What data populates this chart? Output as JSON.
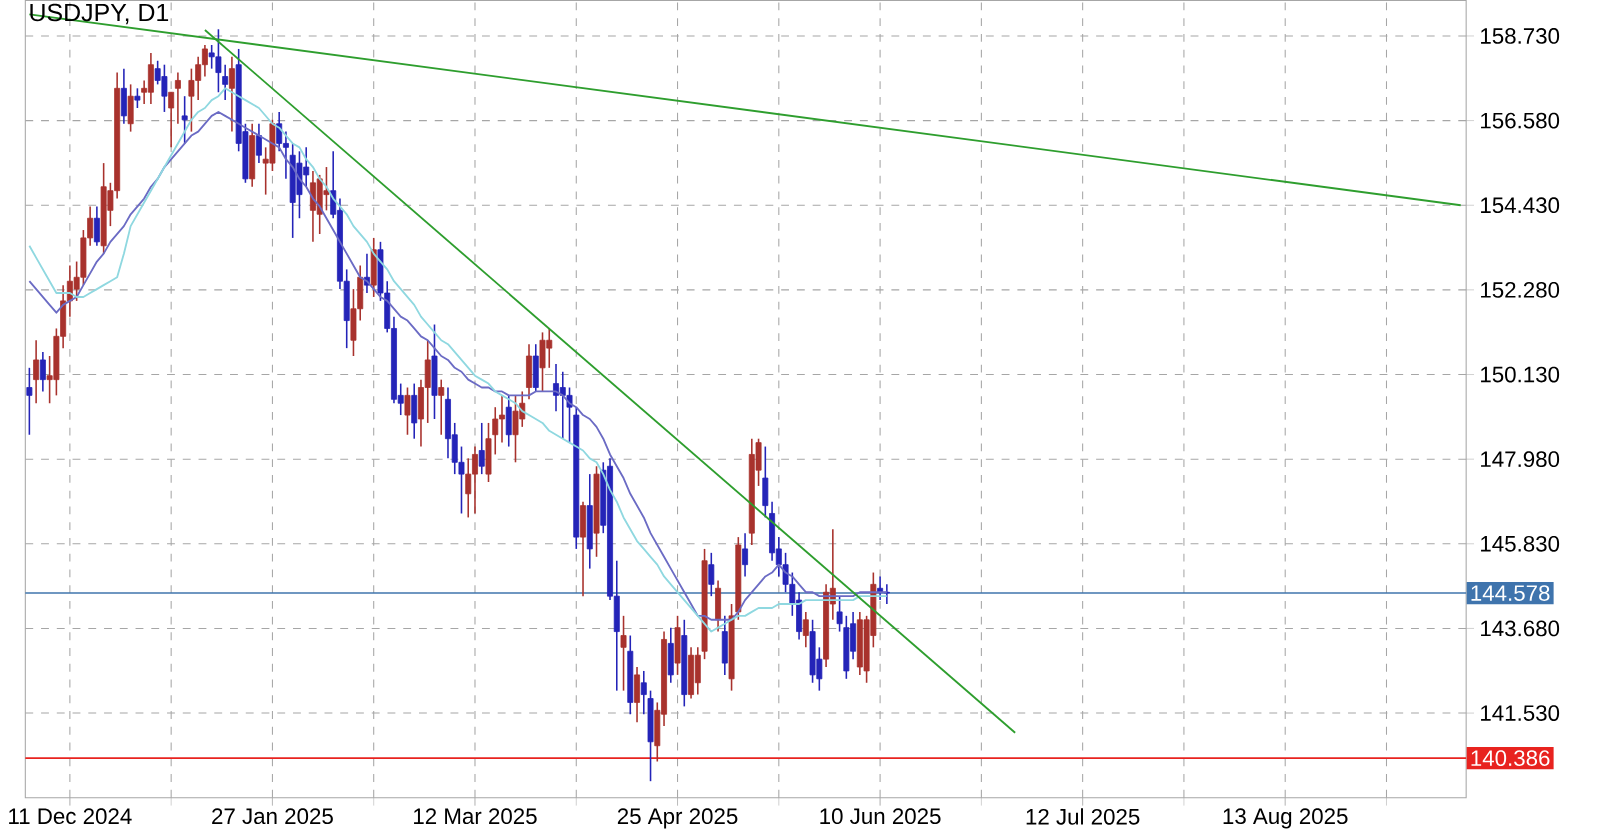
{
  "chart_data": {
    "type": "candlestick",
    "title": "USDJPY, D1",
    "ylim": [
      139.38,
      159.63
    ],
    "categories": [
      null,
      null,
      null,
      null,
      null,
      null,
      "11 Dec 2024",
      null,
      null,
      null,
      null,
      null,
      null,
      null,
      null,
      null,
      null,
      null,
      null,
      null,
      null,
      null,
      null,
      null,
      null,
      null,
      null,
      null,
      null,
      null,
      null,
      null,
      null,
      null,
      null,
      null,
      "27 Jan 2025",
      null,
      null,
      null,
      null,
      null,
      null,
      null,
      null,
      null,
      null,
      null,
      null,
      null,
      null,
      null,
      null,
      null,
      null,
      null,
      null,
      null,
      null,
      null,
      null,
      null,
      null,
      null,
      null,
      null,
      "12 Mar 2025",
      null,
      null,
      null,
      null,
      null,
      null,
      null,
      null,
      null,
      null,
      null,
      null,
      null,
      null,
      null,
      null,
      null,
      null,
      null,
      null,
      null,
      null,
      null,
      null,
      null,
      null,
      null,
      null,
      null,
      "25 Apr 2025",
      null,
      null,
      null,
      null,
      null,
      null,
      null,
      null,
      null,
      null,
      null,
      null,
      null,
      null,
      null,
      null,
      null,
      null,
      null,
      null,
      null,
      null,
      null,
      null,
      null,
      null,
      null,
      null,
      null,
      "10 Jun 2025",
      null,
      null,
      null,
      null,
      null,
      null,
      null,
      null,
      null,
      null,
      null,
      null,
      null,
      null,
      null,
      null,
      null,
      null,
      null,
      null,
      null,
      null,
      null,
      null,
      null,
      null,
      null,
      null,
      null,
      "12 Jul 2025",
      null,
      null,
      null,
      null,
      null,
      null,
      null,
      null,
      null,
      null,
      null,
      null,
      null,
      null,
      null,
      null,
      null,
      null,
      null,
      null,
      null,
      null,
      null,
      null,
      null,
      null,
      null,
      null,
      null,
      "13 Aug 2025",
      null,
      null,
      null,
      null,
      null,
      null,
      null,
      null,
      null,
      null,
      null,
      null,
      null,
      null,
      null,
      null,
      null,
      null,
      null,
      null,
      null,
      null,
      null,
      null,
      null,
      null
    ],
    "yticks": [
      {
        "value": 141.53,
        "label": "141.530"
      },
      {
        "value": 143.68,
        "label": "143.680"
      },
      {
        "value": 145.83,
        "label": "145.830"
      },
      {
        "value": 147.98,
        "label": "147.980"
      },
      {
        "value": 150.13,
        "label": "150.130"
      },
      {
        "value": 152.28,
        "label": "152.280"
      },
      {
        "value": 154.43,
        "label": "154.430"
      },
      {
        "value": 156.58,
        "label": "156.580"
      },
      {
        "value": 158.73,
        "label": "158.730"
      }
    ],
    "grid": true,
    "ref_lines": [
      {
        "axis": "y",
        "value": 144.578,
        "label": "144.578",
        "color": "#3f74ad"
      },
      {
        "axis": "y",
        "value": 140.386,
        "label": "140.386",
        "color": "#e8231f"
      }
    ],
    "series": [
      {
        "ohlc": [
          [
            149.8,
            150.3,
            148.6,
            149.6
          ],
          [
            150.0,
            151.0,
            149.4,
            150.5
          ],
          [
            150.5,
            150.7,
            149.7,
            150.0
          ],
          [
            150.0,
            150.6,
            149.4,
            150.1
          ],
          [
            150.0,
            151.3,
            149.6,
            151.1
          ],
          [
            151.1,
            152.4,
            150.8,
            152.0
          ],
          [
            152.0,
            152.9,
            151.6,
            152.5
          ],
          [
            152.3,
            153.0,
            152.0,
            152.6
          ],
          [
            152.6,
            153.8,
            152.4,
            153.6
          ],
          [
            153.6,
            154.4,
            153.4,
            154.1
          ],
          [
            154.1,
            154.4,
            153.4,
            153.5
          ],
          [
            153.4,
            155.5,
            153.2,
            154.9
          ],
          [
            154.3,
            155.0,
            153.9,
            154.8
          ],
          [
            154.8,
            157.8,
            154.6,
            157.4
          ],
          [
            157.4,
            157.9,
            156.5,
            156.7
          ],
          [
            156.5,
            157.5,
            156.3,
            157.2
          ],
          [
            157.2,
            157.4,
            156.9,
            157.1
          ],
          [
            157.3,
            157.6,
            157.0,
            157.4
          ],
          [
            157.3,
            158.3,
            157.0,
            158.0
          ],
          [
            157.9,
            158.1,
            157.5,
            157.6
          ],
          [
            157.7,
            158.0,
            156.8,
            157.2
          ],
          [
            156.9,
            157.3,
            155.9,
            157.3
          ],
          [
            157.4,
            157.8,
            156.5,
            157.6
          ],
          [
            156.7,
            157.2,
            156.0,
            156.6
          ],
          [
            157.2,
            157.9,
            156.3,
            157.6
          ],
          [
            157.6,
            158.2,
            157.1,
            158.0
          ],
          [
            158.0,
            158.5,
            157.7,
            158.4
          ],
          [
            158.3,
            158.5,
            157.9,
            158.2
          ],
          [
            158.2,
            158.9,
            157.3,
            157.8
          ],
          [
            157.7,
            158.0,
            157.1,
            157.5
          ],
          [
            157.4,
            158.2,
            156.3,
            157.9
          ],
          [
            158.0,
            158.4,
            155.8,
            156.0
          ],
          [
            156.3,
            156.5,
            155.0,
            155.1
          ],
          [
            155.1,
            156.5,
            154.9,
            156.2
          ],
          [
            156.2,
            156.5,
            155.5,
            155.7
          ],
          [
            155.5,
            155.9,
            154.7,
            155.6
          ],
          [
            155.5,
            156.6,
            155.3,
            156.5
          ],
          [
            156.5,
            156.8,
            155.8,
            156.0
          ],
          [
            156.0,
            156.3,
            155.1,
            155.9
          ],
          [
            155.7,
            156.0,
            153.6,
            154.5
          ],
          [
            155.5,
            155.8,
            154.1,
            154.7
          ],
          [
            155.4,
            155.9,
            154.9,
            155.2
          ],
          [
            154.3,
            155.3,
            153.5,
            155.0
          ],
          [
            154.2,
            155.2,
            153.7,
            155.1
          ],
          [
            154.7,
            155.4,
            154.3,
            154.8
          ],
          [
            154.8,
            155.8,
            154.1,
            154.2
          ],
          [
            154.3,
            154.6,
            152.3,
            152.5
          ],
          [
            152.5,
            152.8,
            150.8,
            151.5
          ],
          [
            151.0,
            152.3,
            150.6,
            151.8
          ],
          [
            151.8,
            152.9,
            151.5,
            152.6
          ],
          [
            152.6,
            153.2,
            152.2,
            152.4
          ],
          [
            152.4,
            153.6,
            152.1,
            153.3
          ],
          [
            153.3,
            153.5,
            152.0,
            152.2
          ],
          [
            152.2,
            152.5,
            151.2,
            151.3
          ],
          [
            151.3,
            151.6,
            149.4,
            149.5
          ],
          [
            149.6,
            149.9,
            149.1,
            149.4
          ],
          [
            149.1,
            149.8,
            148.6,
            149.6
          ],
          [
            149.6,
            149.9,
            148.5,
            148.9
          ],
          [
            149.0,
            150.0,
            148.3,
            149.8
          ],
          [
            149.8,
            151.0,
            148.9,
            150.5
          ],
          [
            150.6,
            151.4,
            149.0,
            149.6
          ],
          [
            149.6,
            150.0,
            148.6,
            149.8
          ],
          [
            149.5,
            149.8,
            148.0,
            148.5
          ],
          [
            148.6,
            148.9,
            147.6,
            147.9
          ],
          [
            147.9,
            148.3,
            146.6,
            147.6
          ],
          [
            147.1,
            148.0,
            146.5,
            147.6
          ],
          [
            147.6,
            148.3,
            146.6,
            148.1
          ],
          [
            148.2,
            148.9,
            147.6,
            147.8
          ],
          [
            147.6,
            148.9,
            147.4,
            148.5
          ],
          [
            148.6,
            149.3,
            148.1,
            149.0
          ],
          [
            149.0,
            149.6,
            148.4,
            149.1
          ],
          [
            149.3,
            149.6,
            148.3,
            148.6
          ],
          [
            148.6,
            149.6,
            147.9,
            149.2
          ],
          [
            149.0,
            149.7,
            148.8,
            149.4
          ],
          [
            149.8,
            150.9,
            149.5,
            150.6
          ],
          [
            150.6,
            150.9,
            149.7,
            149.8
          ],
          [
            150.3,
            151.2,
            149.7,
            151.0
          ],
          [
            150.8,
            151.3,
            150.3,
            151.0
          ],
          [
            149.9,
            150.4,
            149.2,
            149.6
          ],
          [
            149.8,
            150.2,
            148.5,
            149.6
          ],
          [
            149.6,
            149.8,
            148.4,
            149.3
          ],
          [
            149.1,
            149.3,
            145.7,
            146.0
          ],
          [
            146.0,
            146.9,
            144.5,
            146.8
          ],
          [
            146.8,
            147.6,
            145.2,
            145.7
          ],
          [
            146.1,
            147.8,
            145.5,
            147.6
          ],
          [
            147.7,
            147.9,
            146.1,
            146.3
          ],
          [
            147.8,
            148.0,
            144.4,
            144.5
          ],
          [
            144.5,
            145.4,
            142.1,
            143.6
          ],
          [
            143.2,
            144.0,
            142.1,
            143.5
          ],
          [
            143.1,
            143.5,
            141.5,
            141.8
          ],
          [
            141.8,
            142.7,
            141.3,
            142.5
          ],
          [
            142.3,
            142.6,
            141.5,
            142.0
          ],
          [
            141.9,
            142.1,
            139.8,
            140.8
          ],
          [
            140.7,
            141.8,
            140.3,
            141.6
          ],
          [
            141.5,
            143.6,
            141.2,
            143.4
          ],
          [
            143.3,
            143.7,
            142.3,
            142.5
          ],
          [
            142.8,
            144.0,
            142.5,
            143.7
          ],
          [
            143.5,
            143.9,
            141.7,
            142.0
          ],
          [
            142.0,
            143.2,
            141.9,
            143.0
          ],
          [
            142.3,
            143.2,
            142.0,
            143.0
          ],
          [
            143.1,
            145.7,
            142.9,
            145.4
          ],
          [
            145.3,
            145.6,
            144.5,
            144.8
          ],
          [
            143.9,
            144.9,
            143.6,
            144.7
          ],
          [
            143.6,
            144.0,
            142.5,
            142.8
          ],
          [
            142.4,
            144.3,
            142.1,
            144.0
          ],
          [
            144.1,
            146.0,
            143.9,
            145.8
          ],
          [
            145.7,
            146.1,
            145.0,
            145.3
          ],
          [
            146.1,
            148.5,
            145.8,
            148.1
          ],
          [
            147.7,
            148.5,
            147.3,
            148.4
          ],
          [
            147.5,
            148.3,
            146.5,
            146.8
          ],
          [
            146.6,
            146.9,
            145.4,
            145.6
          ],
          [
            145.7,
            146.0,
            145.0,
            145.3
          ],
          [
            145.3,
            145.6,
            144.6,
            144.8
          ],
          [
            144.8,
            145.1,
            144.0,
            144.3
          ],
          [
            144.4,
            144.6,
            143.4,
            143.6
          ],
          [
            143.5,
            144.1,
            143.2,
            143.9
          ],
          [
            143.6,
            143.9,
            142.3,
            142.5
          ],
          [
            142.9,
            143.2,
            142.1,
            142.4
          ],
          [
            142.9,
            144.8,
            142.7,
            144.6
          ],
          [
            144.3,
            146.2,
            143.9,
            144.7
          ],
          [
            144.1,
            144.5,
            143.6,
            143.8
          ],
          [
            143.7,
            144.0,
            142.4,
            142.6
          ],
          [
            143.8,
            144.1,
            142.9,
            143.1
          ],
          [
            142.7,
            144.1,
            142.5,
            143.9
          ],
          [
            142.6,
            144.0,
            142.3,
            143.9
          ],
          [
            143.5,
            145.1,
            143.2,
            144.8
          ],
          [
            144.7,
            145.0,
            144.4,
            144.6
          ],
          [
            144.6,
            144.8,
            144.3,
            144.58
          ],
          null,
          null,
          null,
          null,
          null,
          null,
          null,
          null,
          null,
          null,
          null,
          null,
          null,
          null,
          null,
          null,
          null,
          null,
          null,
          null,
          null,
          null,
          null,
          null,
          null,
          null,
          null,
          null,
          null,
          null,
          null,
          null,
          null,
          null,
          null,
          null,
          null,
          null,
          null,
          null,
          null,
          null,
          null,
          null,
          null,
          null,
          null,
          null,
          null,
          null,
          null,
          null,
          null,
          null,
          null,
          null,
          null,
          null,
          null,
          null,
          null,
          null,
          null,
          null,
          null,
          null,
          null,
          null,
          null,
          null,
          null,
          null,
          null,
          null,
          null,
          null,
          null,
          null,
          null,
          null,
          null,
          null,
          null,
          null,
          null
        ],
        "colors": [
          "#2424b8",
          "#a8322d",
          "#2424b8",
          "#a8322d",
          "#a8322d",
          "#a8322d",
          "#a8322d",
          "#a8322d",
          "#a8322d",
          "#a8322d",
          "#2424b8",
          "#a8322d",
          "#a8322d",
          "#a8322d",
          "#2424b8",
          "#a8322d",
          "#2424b8",
          "#a8322d",
          "#a8322d",
          "#2424b8",
          "#2424b8",
          "#a8322d",
          "#a8322d",
          "#2424b8",
          "#a8322d",
          "#a8322d",
          "#a8322d",
          "#2424b8",
          "#2424b8",
          "#2424b8",
          "#a8322d",
          "#2424b8",
          "#2424b8",
          "#a8322d",
          "#2424b8",
          "#a8322d",
          "#a8322d",
          "#2424b8",
          "#2424b8",
          "#2424b8",
          "#2424b8",
          "#2424b8",
          "#a8322d",
          "#a8322d",
          "#a8322d",
          "#2424b8",
          "#2424b8",
          "#2424b8",
          "#a8322d",
          "#a8322d",
          "#2424b8",
          "#a8322d",
          "#2424b8",
          "#2424b8",
          "#2424b8",
          "#2424b8",
          "#a8322d",
          "#2424b8",
          "#a8322d",
          "#a8322d",
          "#2424b8",
          "#a8322d",
          "#2424b8",
          "#2424b8",
          "#2424b8",
          "#a8322d",
          "#a8322d",
          "#2424b8",
          "#a8322d",
          "#a8322d",
          "#a8322d",
          "#2424b8",
          "#a8322d",
          "#a8322d",
          "#a8322d",
          "#2424b8",
          "#a8322d",
          "#a8322d",
          "#2424b8",
          "#2424b8",
          "#2424b8",
          "#2424b8",
          "#a8322d",
          "#2424b8",
          "#a8322d",
          "#2424b8",
          "#2424b8",
          "#2424b8",
          "#a8322d",
          "#2424b8",
          "#a8322d",
          "#2424b8",
          "#2424b8",
          "#a8322d",
          "#a8322d",
          "#2424b8",
          "#a8322d",
          "#2424b8",
          "#a8322d",
          "#a8322d",
          "#a8322d",
          "#2424b8",
          "#a8322d",
          "#2424b8",
          "#a8322d",
          "#a8322d",
          "#2424b8",
          "#a8322d",
          "#a8322d",
          "#2424b8",
          "#2424b8",
          "#2424b8",
          "#2424b8",
          "#2424b8",
          "#2424b8",
          "#a8322d",
          "#2424b8",
          "#2424b8",
          "#a8322d",
          "#a8322d",
          "#2424b8",
          "#2424b8",
          "#2424b8",
          "#a8322d",
          "#a8322d",
          "#a8322d",
          "#2424b8",
          "#2424b8",
          null,
          null,
          null,
          null,
          null,
          null,
          null,
          null,
          null,
          null,
          null,
          null,
          null,
          null,
          null,
          null,
          null,
          null,
          null,
          null,
          null,
          null,
          null,
          null,
          null,
          null,
          null,
          null,
          null,
          null,
          null,
          null,
          null,
          null,
          null,
          null,
          null,
          null,
          null,
          null,
          null,
          null,
          null,
          null,
          null,
          null,
          null,
          null,
          null,
          null,
          null,
          null,
          null,
          null,
          null,
          null,
          null,
          null,
          null,
          null,
          null,
          null,
          null,
          null,
          null,
          null,
          null,
          null,
          null,
          null,
          null,
          null,
          null,
          null,
          null,
          null,
          null,
          null,
          null,
          null,
          null,
          null,
          null,
          null,
          null
        ]
      },
      {
        "type": "line",
        "color": "#6b6bc4",
        "values": [
          152.5,
          152.3,
          152.1,
          151.9,
          151.7,
          151.9,
          152.0,
          152.1,
          152.4,
          152.7,
          153.0,
          153.2,
          153.5,
          153.7,
          153.9,
          154.2,
          154.4,
          154.6,
          154.9,
          155.1,
          155.4,
          155.6,
          155.8,
          156.0,
          156.2,
          156.3,
          156.5,
          156.7,
          156.8,
          156.7,
          156.6,
          156.5,
          156.4,
          156.3,
          156.2,
          156.1,
          156.0,
          155.9,
          155.6,
          155.4,
          155.1,
          154.9,
          154.6,
          154.4,
          154.1,
          153.8,
          153.5,
          153.2,
          152.9,
          152.6,
          152.5,
          152.3,
          152.1,
          152.0,
          151.8,
          151.6,
          151.5,
          151.3,
          151.1,
          151.0,
          150.8,
          150.6,
          150.5,
          150.3,
          150.2,
          150.0,
          149.9,
          149.8,
          149.8,
          149.7,
          149.7,
          149.6,
          149.6,
          149.6,
          149.6,
          149.7,
          149.7,
          149.7,
          149.7,
          149.6,
          149.4,
          149.3,
          149.1,
          149.0,
          148.8,
          148.5,
          148.1,
          147.8,
          147.5,
          147.1,
          146.8,
          146.5,
          146.1,
          145.8,
          145.5,
          145.2,
          144.9,
          144.6,
          144.3,
          144.0,
          144.0,
          143.9,
          143.9,
          143.9,
          143.9,
          144.1,
          144.4,
          144.6,
          144.8,
          145.0,
          145.1,
          145.3,
          145.1,
          145.0,
          144.8,
          144.6,
          144.6,
          144.5,
          144.5,
          144.5,
          144.5,
          144.5,
          144.5,
          144.6,
          144.6,
          144.6,
          144.6,
          144.6,
          null,
          null,
          null,
          null,
          null,
          null,
          null,
          null,
          null,
          null,
          null,
          null,
          null,
          null,
          null,
          null,
          null,
          null,
          null,
          null,
          null,
          null,
          null,
          null,
          null,
          null,
          null,
          null,
          null,
          null,
          null,
          null,
          null,
          null,
          null,
          null,
          null,
          null,
          null,
          null,
          null,
          null,
          null,
          null,
          null,
          null,
          null,
          null,
          null,
          null,
          null,
          null,
          null,
          null,
          null,
          null,
          null,
          null,
          null,
          null,
          null,
          null,
          null,
          null,
          null,
          null,
          null,
          null,
          null,
          null,
          null,
          null,
          null,
          null,
          null,
          null,
          null,
          null,
          null,
          null,
          null,
          null,
          null,
          null,
          null
        ]
      },
      {
        "type": "line",
        "color": "#8fd8e0",
        "values": [
          153.4,
          153.1,
          152.8,
          152.5,
          152.2,
          152.2,
          152.2,
          152.1,
          152.1,
          152.2,
          152.3,
          152.4,
          152.5,
          152.6,
          153.2,
          153.9,
          154.2,
          154.5,
          154.8,
          155.1,
          155.4,
          155.7,
          156.0,
          156.3,
          156.6,
          156.8,
          156.9,
          157.1,
          157.2,
          157.4,
          157.3,
          157.2,
          157.1,
          157.0,
          156.9,
          156.7,
          156.5,
          156.4,
          156.2,
          156.0,
          155.9,
          155.6,
          155.4,
          155.1,
          154.9,
          154.6,
          154.4,
          154.2,
          153.9,
          153.7,
          153.5,
          153.2,
          153.0,
          152.8,
          152.5,
          152.3,
          152.1,
          151.9,
          151.6,
          151.4,
          151.2,
          151.0,
          150.9,
          150.7,
          150.5,
          150.3,
          150.1,
          150.0,
          149.9,
          149.7,
          149.6,
          149.5,
          149.4,
          149.2,
          149.1,
          149.0,
          148.9,
          148.7,
          148.6,
          148.5,
          148.4,
          148.3,
          148.2,
          148.0,
          147.9,
          147.6,
          147.2,
          146.9,
          146.5,
          146.2,
          145.9,
          145.7,
          145.5,
          145.3,
          145.0,
          144.8,
          144.6,
          144.4,
          144.2,
          144.0,
          143.8,
          143.6,
          143.7,
          143.8,
          143.9,
          144.0,
          144.0,
          144.1,
          144.2,
          144.2,
          144.2,
          144.3,
          144.3,
          144.3,
          144.3,
          144.4,
          144.4,
          144.4,
          144.4,
          144.4,
          144.4,
          144.4,
          144.4,
          144.5,
          144.5,
          144.5,
          144.5,
          144.5,
          null,
          null,
          null,
          null,
          null,
          null,
          null,
          null,
          null,
          null,
          null,
          null,
          null,
          null,
          null,
          null,
          null,
          null,
          null,
          null,
          null,
          null,
          null,
          null,
          null,
          null,
          null,
          null,
          null,
          null,
          null,
          null,
          null,
          null,
          null,
          null,
          null,
          null,
          null,
          null,
          null,
          null,
          null,
          null,
          null,
          null,
          null,
          null,
          null,
          null,
          null,
          null,
          null,
          null,
          null,
          null,
          null,
          null,
          null,
          null,
          null,
          null,
          null,
          null,
          null,
          null,
          null,
          null,
          null,
          null,
          null,
          null,
          null,
          null,
          null,
          null,
          null,
          null,
          null,
          null,
          null,
          null,
          null,
          null,
          null
        ]
      },
      {
        "type": "line",
        "color": "#2e9e2e",
        "values": [
          159.28,
          null,
          null,
          null,
          null,
          null,
          null,
          null,
          null,
          null,
          null,
          null,
          null,
          null,
          null,
          null,
          null,
          null,
          null,
          null,
          null,
          null,
          null,
          null,
          null,
          null,
          null,
          null,
          null,
          null,
          null,
          null,
          null,
          null,
          null,
          null,
          null,
          null,
          null,
          null,
          null,
          null,
          null,
          null,
          null,
          null,
          null,
          null,
          null,
          null,
          null,
          null,
          null,
          null,
          null,
          null,
          null,
          null,
          null,
          null,
          null,
          null,
          null,
          null,
          null,
          null,
          null,
          null,
          null,
          null,
          null,
          null,
          null,
          null,
          null,
          null,
          null,
          null,
          null,
          null,
          null,
          null,
          null,
          null,
          null,
          null,
          null,
          null,
          null,
          null,
          null,
          null,
          null,
          null,
          null,
          null,
          null,
          null,
          null,
          null,
          null,
          null,
          null,
          null,
          null,
          null,
          null,
          null,
          null,
          null,
          null,
          null,
          null,
          null,
          null,
          null,
          null,
          null,
          null,
          null,
          null,
          null,
          null,
          null,
          null,
          null,
          null,
          null,
          null,
          null,
          null,
          null,
          null,
          null,
          null,
          null,
          null,
          null,
          null,
          null,
          null,
          null,
          null,
          null,
          null,
          null,
          null,
          null,
          null,
          null,
          null,
          null,
          null,
          null,
          null,
          null,
          null,
          null,
          null,
          null,
          null,
          null,
          null,
          null,
          null,
          null,
          null,
          null,
          null,
          null,
          null,
          null,
          null,
          null,
          null,
          null,
          null,
          null,
          null,
          null,
          null,
          null,
          null,
          null,
          null,
          null,
          null,
          null,
          null,
          null,
          null,
          null,
          null,
          null,
          null,
          null,
          null,
          null,
          null,
          null,
          null,
          null,
          null,
          null,
          null,
          null,
          null,
          null,
          null,
          null,
          null,
          null,
          154.43
        ]
      },
      {
        "type": "line",
        "color": "#2e9e2e",
        "values": [
          null,
          null,
          null,
          null,
          null,
          null,
          null,
          null,
          null,
          null,
          null,
          null,
          null,
          null,
          null,
          null,
          null,
          null,
          null,
          null,
          null,
          null,
          null,
          null,
          null,
          null,
          158.88,
          null,
          null,
          null,
          null,
          null,
          null,
          null,
          null,
          null,
          null,
          null,
          null,
          null,
          null,
          null,
          null,
          null,
          null,
          null,
          null,
          null,
          null,
          null,
          null,
          null,
          null,
          null,
          null,
          null,
          null,
          null,
          null,
          null,
          null,
          null,
          null,
          null,
          null,
          null,
          null,
          null,
          null,
          null,
          null,
          null,
          null,
          null,
          null,
          null,
          null,
          null,
          null,
          null,
          null,
          null,
          null,
          null,
          null,
          null,
          null,
          null,
          null,
          null,
          null,
          null,
          null,
          null,
          null,
          null,
          null,
          null,
          null,
          null,
          null,
          null,
          null,
          null,
          null,
          null,
          null,
          null,
          null,
          null,
          null,
          null,
          null,
          null,
          null,
          null,
          null,
          null,
          null,
          null,
          null,
          null,
          null,
          null,
          null,
          null,
          null,
          null,
          null,
          null,
          null,
          null,
          null,
          null,
          null,
          null,
          null,
          null,
          null,
          null,
          null,
          null,
          null,
          null,
          null,
          null,
          141.03,
          null,
          null,
          null,
          null,
          null,
          null,
          null,
          null,
          null,
          null,
          null,
          null,
          null,
          null,
          null,
          null,
          null,
          null,
          null,
          null,
          null,
          null,
          null,
          null,
          null,
          null,
          null,
          null,
          null,
          null,
          null,
          null,
          null,
          null,
          null,
          null,
          null,
          null,
          null,
          null,
          null,
          null,
          null,
          null,
          null,
          null,
          null,
          null,
          null,
          null,
          null,
          null,
          null,
          null,
          null,
          null,
          null,
          null,
          null,
          null,
          null,
          null,
          null,
          null,
          null,
          null
        ]
      }
    ]
  }
}
